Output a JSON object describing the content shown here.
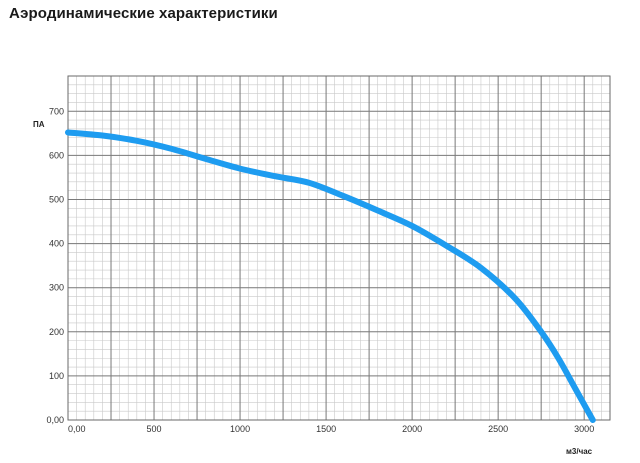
{
  "page": {
    "title": "Аэродинамические характеристики"
  },
  "chart_data": {
    "type": "line",
    "xlabel": "м3/час",
    "ylabel": "ПА",
    "xlim": [
      0,
      3150
    ],
    "ylim": [
      0,
      780
    ],
    "xticks": [
      {
        "value": 0,
        "label": "0,00"
      },
      {
        "value": 500,
        "label": "500"
      },
      {
        "value": 1000,
        "label": "1000"
      },
      {
        "value": 1500,
        "label": "1500"
      },
      {
        "value": 2000,
        "label": "2000"
      },
      {
        "value": 2500,
        "label": "2500"
      },
      {
        "value": 3000,
        "label": "3000"
      }
    ],
    "yticks": [
      {
        "value": 0,
        "label": "0,00"
      },
      {
        "value": 100,
        "label": "100"
      },
      {
        "value": 200,
        "label": "200"
      },
      {
        "value": 300,
        "label": "300"
      },
      {
        "value": 400,
        "label": "400"
      },
      {
        "value": 500,
        "label": "500"
      },
      {
        "value": 600,
        "label": "600"
      },
      {
        "value": 700,
        "label": "700"
      }
    ],
    "grid": true,
    "series_color": "#1e9cf0",
    "series": [
      {
        "x": [
          0,
          200,
          400,
          600,
          800,
          1000,
          1200,
          1400,
          1600,
          1800,
          2000,
          2200,
          2400,
          2600,
          2750,
          2850,
          2950,
          3050
        ],
        "y": [
          652,
          645,
          633,
          615,
          592,
          570,
          553,
          538,
          508,
          475,
          440,
          395,
          345,
          275,
          200,
          140,
          70,
          0
        ]
      }
    ]
  }
}
